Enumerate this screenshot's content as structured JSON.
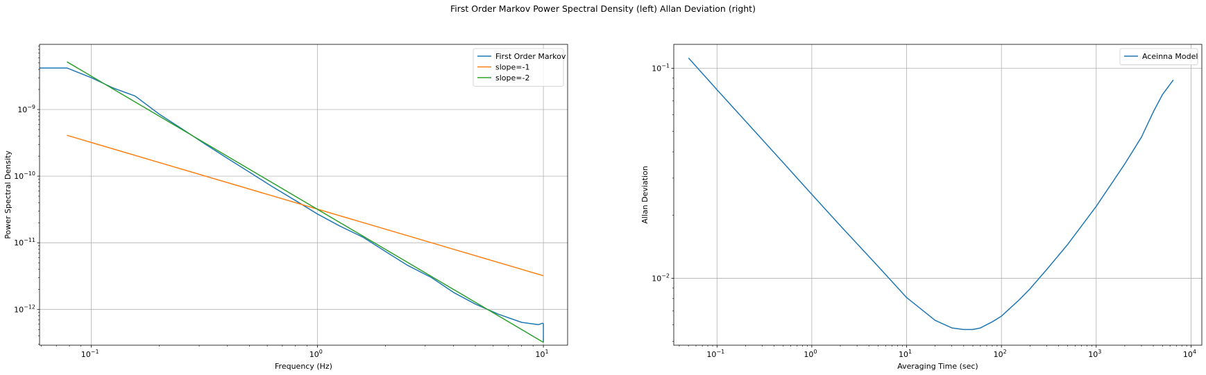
{
  "suptitle": "First Order Markov Power Spectral Density (left) Allan Deviation (right)",
  "chart_data": [
    {
      "type": "line",
      "xscale": "log",
      "yscale": "log",
      "xlabel": "Frequency (Hz)",
      "ylabel": "Power Spectral Density",
      "xlim": [
        0.059,
        12.8
      ],
      "ylim": [
        2.9e-13,
        9.5e-09
      ],
      "xticks": [
        {
          "value": 0.1,
          "base": "10",
          "exp": "−1"
        },
        {
          "value": 1,
          "base": "10",
          "exp": "0"
        },
        {
          "value": 10,
          "base": "10",
          "exp": "1"
        }
      ],
      "yticks": [
        {
          "value": 1e-12,
          "base": "10",
          "exp": "−12"
        },
        {
          "value": 1e-11,
          "base": "10",
          "exp": "−11"
        },
        {
          "value": 1e-10,
          "base": "10",
          "exp": "−10"
        },
        {
          "value": 1e-09,
          "base": "10",
          "exp": "−9"
        }
      ],
      "grid": true,
      "legend_position": "top-right",
      "series": [
        {
          "name": "First Order Markov",
          "color": "#1f77b4",
          "x": [
            0.059,
            0.078,
            0.1,
            0.125,
            0.156,
            0.2,
            0.25,
            0.32,
            0.4,
            0.5,
            0.63,
            0.8,
            1.0,
            1.25,
            1.6,
            2.0,
            2.5,
            3.2,
            4.0,
            5.0,
            6.3,
            8.0,
            9.5,
            9.9,
            10.0,
            10.0
          ],
          "y": [
            4.2e-09,
            4.2e-09,
            3e-09,
            2.1e-09,
            1.6e-09,
            8.5e-10,
            5.2e-10,
            3e-10,
            1.85e-10,
            1.15e-10,
            7e-11,
            4.3e-11,
            2.7e-11,
            1.8e-11,
            1.2e-11,
            7.4e-12,
            4.6e-12,
            3e-12,
            1.8e-12,
            1.2e-12,
            8.5e-13,
            6.4e-13,
            5.9e-13,
            6.2e-13,
            6.1e-13,
            3.2e-13
          ]
        },
        {
          "name": "slope=-1",
          "color": "#ff7f0e",
          "x": [
            0.078,
            10.0
          ],
          "y": [
            4.1e-10,
            3.2e-12
          ]
        },
        {
          "name": "slope=-2",
          "color": "#2ca02c",
          "x": [
            0.078,
            10.0
          ],
          "y": [
            5.2e-09,
            3.2e-13
          ]
        }
      ]
    },
    {
      "type": "line",
      "xscale": "log",
      "yscale": "log",
      "xlabel": "Averaging Time (sec)",
      "ylabel": "Allan Deviation",
      "xlim": [
        0.035,
        13000
      ],
      "ylim": [
        0.0048,
        0.13
      ],
      "xticks": [
        {
          "value": 0.1,
          "base": "10",
          "exp": "−1"
        },
        {
          "value": 1,
          "base": "10",
          "exp": "0"
        },
        {
          "value": 10,
          "base": "10",
          "exp": "1"
        },
        {
          "value": 100,
          "base": "10",
          "exp": "2"
        },
        {
          "value": 1000,
          "base": "10",
          "exp": "3"
        },
        {
          "value": 10000,
          "base": "10",
          "exp": "4"
        }
      ],
      "yticks": [
        {
          "value": 0.01,
          "base": "10",
          "exp": "−2"
        },
        {
          "value": 0.1,
          "base": "10",
          "exp": "−1"
        }
      ],
      "grid": true,
      "legend_position": "top-right",
      "series": [
        {
          "name": "Aceinna Model",
          "color": "#1f77b4",
          "x": [
            0.05,
            0.1,
            0.2,
            0.5,
            1,
            2,
            5,
            10,
            20,
            30,
            40,
            50,
            60,
            80,
            100,
            150,
            200,
            300,
            500,
            1000,
            2000,
            3000,
            4000,
            5000,
            6500
          ],
          "y": [
            0.112,
            0.079,
            0.056,
            0.0355,
            0.0251,
            0.0178,
            0.0114,
            0.0081,
            0.0063,
            0.0058,
            0.0057,
            0.0057,
            0.0058,
            0.0062,
            0.0066,
            0.0078,
            0.0089,
            0.011,
            0.0145,
            0.022,
            0.035,
            0.047,
            0.062,
            0.075,
            0.088
          ]
        }
      ]
    }
  ]
}
